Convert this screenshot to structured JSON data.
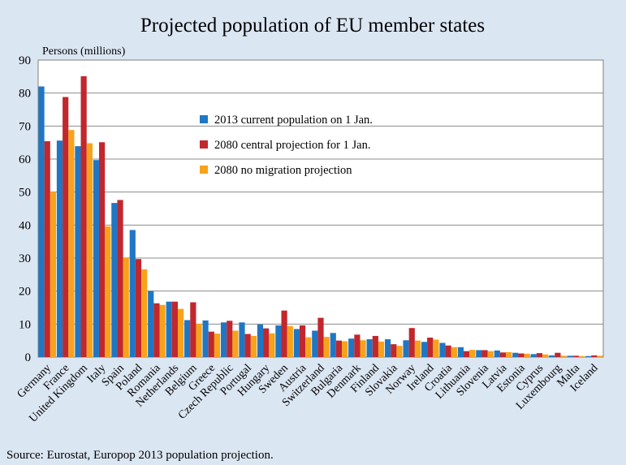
{
  "chart_data": {
    "type": "bar",
    "title": "Projected population of EU member states",
    "ylabel": "Persons (millions)",
    "xlabel": "",
    "ylim": [
      0,
      90
    ],
    "yticks": [
      0,
      10,
      20,
      30,
      40,
      50,
      60,
      70,
      80,
      90
    ],
    "grid": true,
    "legend_position": "top-center",
    "source": "Source: Eurostat, Europop 2013 population projection.",
    "categories": [
      "Germany",
      "France",
      "United Kingdom",
      "Italy",
      "Spain",
      "Poland",
      "Romania",
      "Netherlands",
      "Belgium",
      "Greece",
      "Czech Republic",
      "Portugal",
      "Hungary",
      "Sweden",
      "Austria",
      "Switzerland",
      "Bulgaria",
      "Denmark",
      "Finland",
      "Slovakia",
      "Norway",
      "Ireland",
      "Croatia",
      "Lithuania",
      "Slovenia",
      "Latvia",
      "Estonia",
      "Cyprus",
      "Luxembourg",
      "Malta",
      "Iceland"
    ],
    "series": [
      {
        "name": "2013 current population on 1 Jan.",
        "color": "#1f77c4",
        "values": [
          82.0,
          65.6,
          63.9,
          59.7,
          46.7,
          38.5,
          20.0,
          16.8,
          11.2,
          11.1,
          10.5,
          10.5,
          9.9,
          9.6,
          8.5,
          8.0,
          7.3,
          5.6,
          5.4,
          5.4,
          5.1,
          4.6,
          4.3,
          3.0,
          2.1,
          2.0,
          1.3,
          0.9,
          0.5,
          0.4,
          0.3
        ]
      },
      {
        "name": "2080 central projection for 1 Jan.",
        "color": "#c1272d",
        "values": [
          65.4,
          78.8,
          85.1,
          65.1,
          47.6,
          29.7,
          16.3,
          16.8,
          16.6,
          7.7,
          11.0,
          7.0,
          8.7,
          14.1,
          9.6,
          11.9,
          5.0,
          6.8,
          6.4,
          3.9,
          8.8,
          5.9,
          3.5,
          1.8,
          2.1,
          1.4,
          1.1,
          1.2,
          1.3,
          0.4,
          0.5
        ]
      },
      {
        "name": "2080 no migration projection",
        "color": "#f7a21b",
        "values": [
          50.2,
          68.8,
          64.8,
          39.6,
          30.2,
          26.6,
          15.8,
          14.6,
          10.1,
          7.1,
          8.0,
          6.4,
          7.2,
          9.4,
          6.0,
          6.1,
          4.8,
          5.1,
          4.7,
          3.4,
          5.0,
          5.3,
          3.0,
          2.2,
          1.8,
          1.5,
          1.0,
          0.8,
          0.4,
          0.3,
          0.4
        ]
      }
    ]
  }
}
